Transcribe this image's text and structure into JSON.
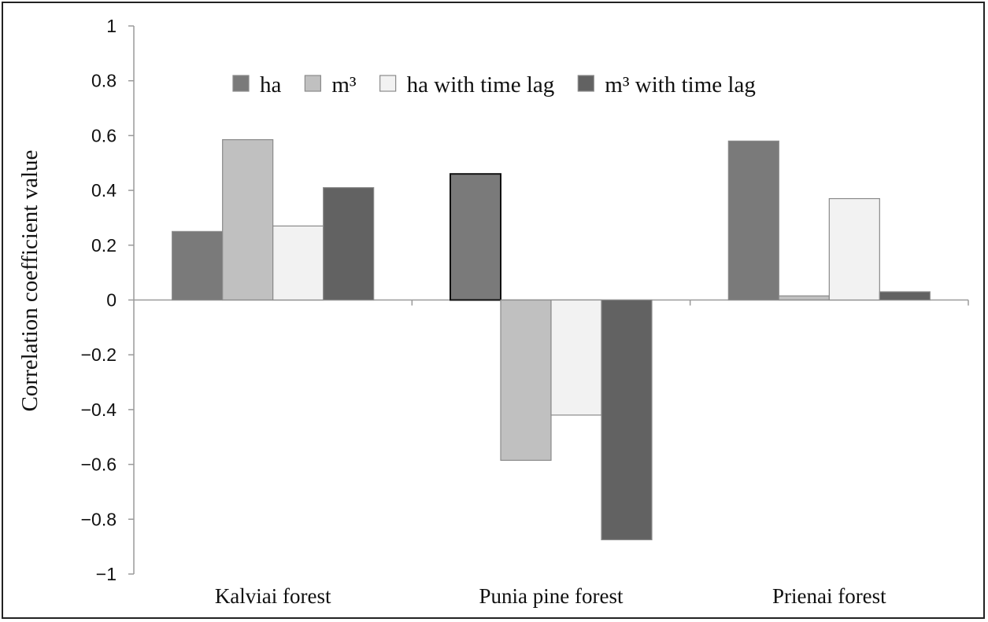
{
  "chart_data": {
    "type": "bar",
    "title": "",
    "ylabel": "Correlation coefficient value",
    "xlabel": "",
    "ylim": [
      -1,
      1
    ],
    "yticks": [
      "1",
      "0.8",
      "0.6",
      "0.4",
      "0.2",
      "0",
      "−0.2",
      "−0.4",
      "−0.6",
      "−0.8",
      "−1"
    ],
    "categories": [
      "Kalviai forest",
      "Punia pine forest",
      "Prienai forest"
    ],
    "series": [
      {
        "name": "ha",
        "values": [
          0.25,
          0.46,
          0.58
        ],
        "color": "#7a7a7a"
      },
      {
        "name": "m³",
        "values": [
          0.585,
          -0.585,
          0.015
        ],
        "color": "#c0c0c0"
      },
      {
        "name": "ha with time lag",
        "values": [
          0.27,
          -0.42,
          0.37
        ],
        "color": "#f2f2f2"
      },
      {
        "name": "m³ with time lag",
        "values": [
          0.41,
          -0.875,
          0.03
        ],
        "color": "#626262"
      }
    ],
    "legend_position": "top",
    "grid": false
  }
}
